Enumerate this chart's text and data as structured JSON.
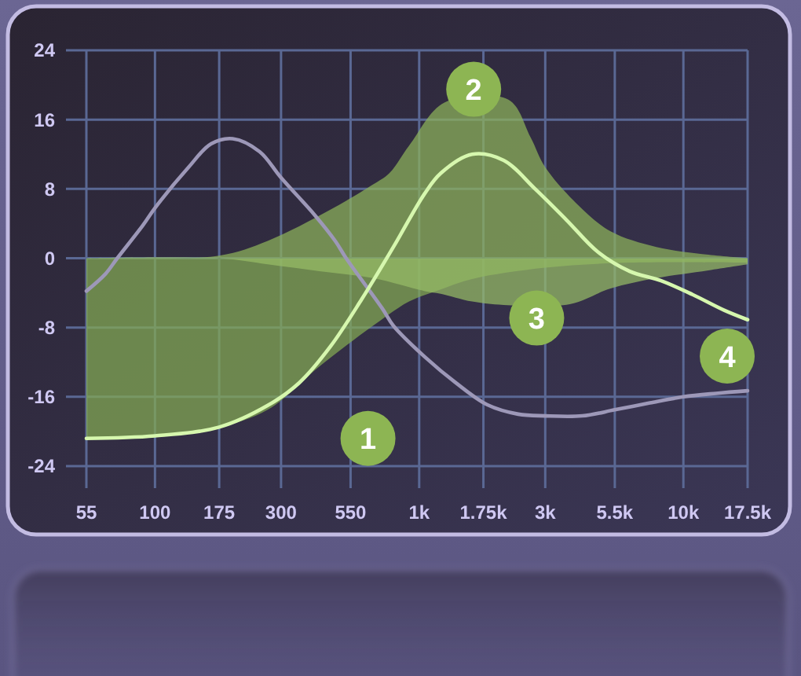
{
  "chart_data": {
    "type": "area",
    "log": "x",
    "xlim": [
      55,
      17500
    ],
    "xticks": [
      55,
      100,
      175,
      300,
      550,
      {
        "value": 1000,
        "label": "1k"
      },
      {
        "value": 1750,
        "label": "1.75k"
      },
      {
        "value": 3000,
        "label": "3k"
      },
      {
        "value": 5500,
        "label": "5.5k"
      },
      {
        "value": 10000,
        "label": "10k"
      },
      {
        "value": 17500,
        "label": "17.5k"
      }
    ],
    "ylim": [
      -24,
      24
    ],
    "yticks": [
      -24,
      -16,
      -8,
      0,
      8,
      16,
      24
    ],
    "grid": true,
    "series": [
      {
        "color": "#84ab53",
        "x": [
          55,
          100,
          175,
          267,
          419,
          668,
          916,
          1206,
          1586,
          3000,
          6258,
          17500
        ],
        "values": [
          -20.8,
          -20.5,
          -19.5,
          -17.5,
          -12.5,
          -7.8,
          -5,
          -3.6,
          -2.4,
          -1.1,
          -0.5,
          -0.5
        ]
      },
      {
        "color": "#8db35a",
        "x": [
          55,
          175,
          267,
          461,
          668,
          770,
          916,
          1250,
          2175,
          2636,
          3000,
          3977,
          5300,
          7900,
          12430,
          17500
        ],
        "values": [
          0,
          0.3,
          2,
          5.6,
          8.5,
          9.8,
          13,
          18,
          18.3,
          14,
          10.5,
          6.2,
          3.1,
          1.3,
          0.4,
          0
        ]
      },
      {
        "color": "#97bc66",
        "x": [
          55,
          175,
          267,
          419,
          668,
          1051,
          1206,
          1586,
          2088,
          3715,
          5300,
          7900,
          12430,
          17500
        ],
        "values": [
          0,
          0,
          -0.7,
          -1.5,
          -2.3,
          -3.8,
          -4.1,
          -5,
          -5.4,
          -5.3,
          -3.5,
          -2.3,
          -1.4,
          -0.7
        ]
      },
      {
        "type": "line",
        "color": "#9d98b8",
        "x": [
          55,
          65,
          72,
          90,
          100,
          134,
          163,
          197,
          249,
          300,
          402,
          481,
          529,
          725,
          799,
          1051,
          1378,
          1806,
          2370,
          3000,
          4146,
          5500,
          7475,
          10000,
          13300,
          17500
        ],
        "values": [
          -3.8,
          -1.8,
          0,
          3.8,
          5.8,
          10.5,
          13.2,
          13.8,
          12.3,
          9.3,
          5,
          2,
          0,
          -5.8,
          -7.8,
          -11.4,
          -14.4,
          -16.9,
          -18,
          -18.2,
          -18.2,
          -17.5,
          -16.7,
          -16,
          -15.6,
          -15.3
        ]
      },
      {
        "type": "line",
        "color": "#d6f7ae",
        "x": [
          55,
          100,
          175,
          267,
          351,
          461,
          607,
          799,
          1051,
          1206,
          1586,
          2088,
          2747,
          3615,
          4756,
          6258,
          8234,
          10835,
          14256,
          17500
        ],
        "values": [
          -20.8,
          -20.5,
          -19.5,
          -17,
          -14.4,
          -10.2,
          -4.7,
          1.3,
          7.5,
          9.8,
          12,
          11.3,
          8,
          4.4,
          0.7,
          -1.5,
          -2.6,
          -4.2,
          -6,
          -7.1
        ]
      }
    ],
    "annotations": [
      {
        "text": "1",
        "x": 640,
        "y": -20.8
      },
      {
        "text": "2",
        "x": 1608,
        "y": 19.5
      },
      {
        "text": "3",
        "x": 2785,
        "y": -6.9
      },
      {
        "text": "4",
        "x": 14650,
        "y": -11.3
      }
    ]
  }
}
